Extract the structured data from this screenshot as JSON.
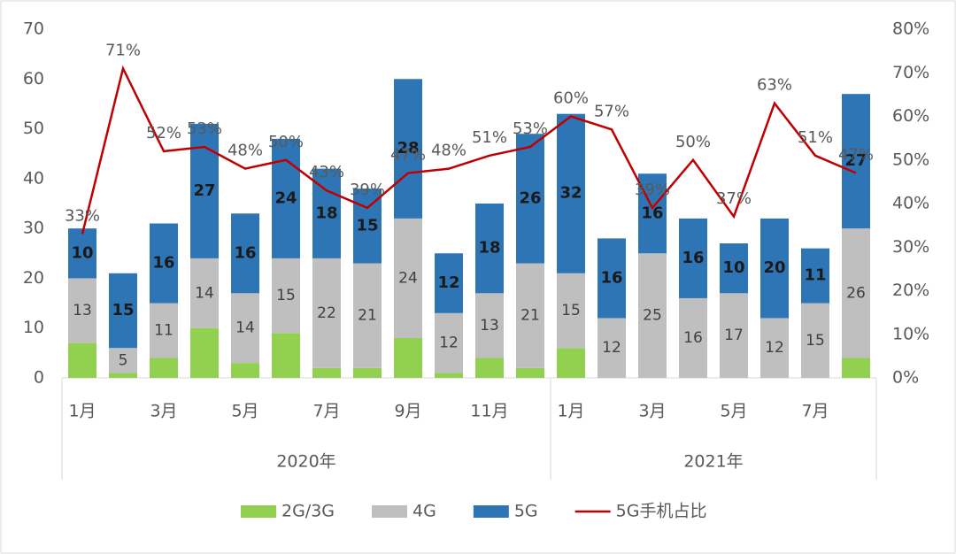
{
  "chart_data": {
    "type": "bar",
    "stacked": true,
    "category_groups": [
      {
        "name": "2020年",
        "categories": [
          "1月",
          null,
          "3月",
          null,
          "5月",
          null,
          "7月",
          null,
          "9月",
          null,
          "11月",
          null
        ]
      },
      {
        "name": "2021年",
        "categories": [
          "1月",
          null,
          "3月",
          null,
          "5月",
          null,
          "7月",
          null
        ]
      }
    ],
    "series": [
      {
        "name": "2G/3G",
        "color": "#92d050",
        "show_labels": false,
        "values": [
          7,
          1,
          4,
          10,
          3,
          9,
          2,
          2,
          8,
          1,
          4,
          2,
          6,
          0,
          0,
          0,
          0,
          0,
          0,
          4
        ]
      },
      {
        "name": "4G",
        "color": "#bfbfbf",
        "show_labels": true,
        "values": [
          13,
          5,
          11,
          14,
          14,
          15,
          22,
          21,
          24,
          12,
          13,
          21,
          15,
          12,
          25,
          16,
          17,
          12,
          15,
          26
        ]
      },
      {
        "name": "5G",
        "color": "#2e75b6",
        "show_labels": true,
        "values": [
          10,
          15,
          16,
          27,
          16,
          24,
          18,
          15,
          28,
          12,
          18,
          26,
          32,
          16,
          16,
          16,
          10,
          20,
          11,
          27
        ]
      },
      {
        "name": "5G手机占比",
        "type": "line",
        "axis": "y2",
        "color": "#c00000",
        "show_labels": true,
        "values": [
          33,
          71,
          52,
          53,
          48,
          50,
          43,
          39,
          47,
          48,
          51,
          53,
          60,
          57,
          39,
          50,
          37,
          63,
          51,
          47
        ],
        "value_labels": [
          "33%",
          "71%",
          "52%",
          "53%",
          "48%",
          "50%",
          "43%",
          "39%",
          "47%",
          "48%",
          "51%",
          "53%",
          "60%",
          "57%",
          "39%",
          "50%",
          "37%",
          "63%",
          "51%",
          "47%"
        ]
      }
    ],
    "ylim": [
      0,
      70
    ],
    "yticks": [
      0,
      10,
      20,
      30,
      40,
      50,
      60,
      70
    ],
    "y2lim": [
      0,
      80
    ],
    "y2ticks": [
      {
        "value": 0,
        "label": "0%"
      },
      {
        "value": 10,
        "label": "10%"
      },
      {
        "value": 20,
        "label": "20%"
      },
      {
        "value": 30,
        "label": "30%"
      },
      {
        "value": 40,
        "label": "40%"
      },
      {
        "value": 50,
        "label": "50%"
      },
      {
        "value": 60,
        "label": "60%"
      },
      {
        "value": 70,
        "label": "70%"
      },
      {
        "value": 80,
        "label": "80%"
      }
    ],
    "grid": false,
    "legend": "bottom"
  }
}
